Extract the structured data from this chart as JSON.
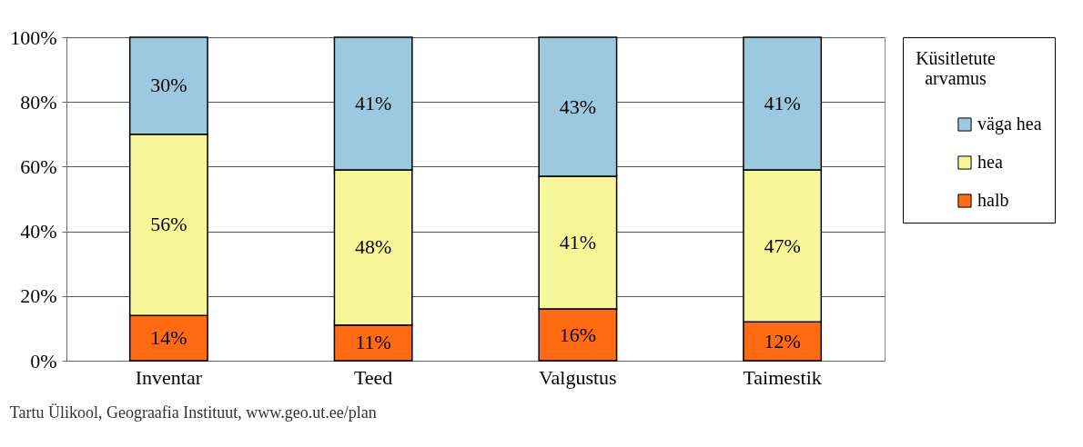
{
  "chart_data": {
    "type": "bar",
    "stacked": true,
    "categories": [
      "Inventar",
      "Teed",
      "Valgustus",
      "Taimestik"
    ],
    "series": [
      {
        "name": "halb",
        "color": "#ff6a13",
        "values": [
          14,
          11,
          16,
          12
        ],
        "value_labels": [
          "14%",
          "11%",
          "16%",
          "12%"
        ]
      },
      {
        "name": "hea",
        "color": "#f7f79a",
        "values": [
          56,
          48,
          41,
          47
        ],
        "value_labels": [
          "56%",
          "48%",
          "41%",
          "47%"
        ]
      },
      {
        "name": "väga hea",
        "color": "#9cc8e0",
        "values": [
          30,
          41,
          43,
          41
        ],
        "value_labels": [
          "30%",
          "41%",
          "43%",
          "41%"
        ]
      }
    ],
    "ylim": [
      0,
      100
    ],
    "yticks": [
      {
        "value": 0,
        "label": "0%"
      },
      {
        "value": 20,
        "label": "20%"
      },
      {
        "value": 40,
        "label": "40%"
      },
      {
        "value": 60,
        "label": "60%"
      },
      {
        "value": 80,
        "label": "80%"
      },
      {
        "value": 100,
        "label": "100%"
      }
    ],
    "legend_title": "Küsitletute arvamus",
    "legend": "right",
    "grid": "y",
    "annotations": [
      "Tartu Ülikool, Geograafia Instituut, www.geo.ut.ee/plan"
    ]
  }
}
